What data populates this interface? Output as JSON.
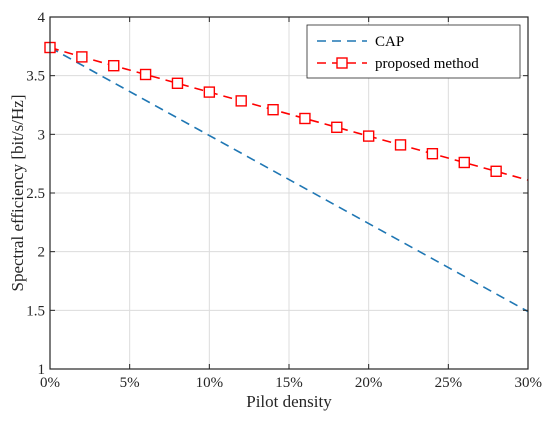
{
  "chart_data": {
    "type": "line",
    "title": "",
    "xlabel": "Pilot density",
    "ylabel": "Spectral efficiency [bit/s/Hz]",
    "xlim": [
      0,
      30
    ],
    "ylim": [
      1,
      4
    ],
    "x_ticks": [
      0,
      5,
      10,
      15,
      20,
      25,
      30
    ],
    "x_tick_labels": [
      "0%",
      "5%",
      "10%",
      "15%",
      "20%",
      "25%",
      "30%"
    ],
    "y_ticks": [
      1,
      1.5,
      2,
      2.5,
      3,
      3.5,
      4
    ],
    "y_tick_labels": [
      "1",
      "1.5",
      "2",
      "2.5",
      "3",
      "3.5",
      "4"
    ],
    "grid": true,
    "legend_position": "top-right",
    "series": [
      {
        "name": "CAP",
        "color": "#1f77b4",
        "line_style": "dashed",
        "marker": "none",
        "x": [
          0,
          30
        ],
        "y": [
          3.74,
          1.49
        ]
      },
      {
        "name": "proposed method",
        "color": "#ff0000",
        "line_style": "dashed",
        "marker": "square",
        "x": [
          0,
          2,
          4,
          6,
          8,
          10,
          12,
          14,
          16,
          18,
          20,
          22,
          24,
          26,
          28,
          30
        ],
        "y": [
          3.74,
          3.66,
          3.585,
          3.51,
          3.435,
          3.36,
          3.285,
          3.21,
          3.135,
          3.06,
          2.985,
          2.91,
          2.835,
          2.76,
          2.685,
          2.61
        ],
        "marker_x": [
          0,
          2,
          4,
          6,
          8,
          10,
          12,
          14,
          16,
          18,
          20,
          22,
          24,
          26,
          28
        ]
      }
    ]
  }
}
